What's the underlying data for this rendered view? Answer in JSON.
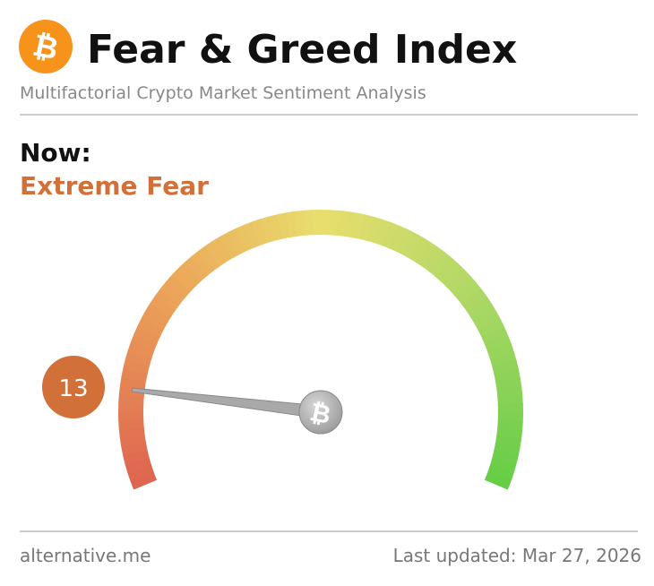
{
  "chart_data": {
    "type": "gauge",
    "title": "Fear & Greed Index",
    "subtitle": "Multifactorial Crypto Market Sentiment Analysis",
    "now_label": "Now:",
    "classification": "Extreme Fear",
    "value": 13,
    "ylim": [
      0,
      100
    ],
    "color": "#d2703a",
    "source": "alternative.me",
    "last_updated": "Last updated: Mar 27, 2026"
  }
}
